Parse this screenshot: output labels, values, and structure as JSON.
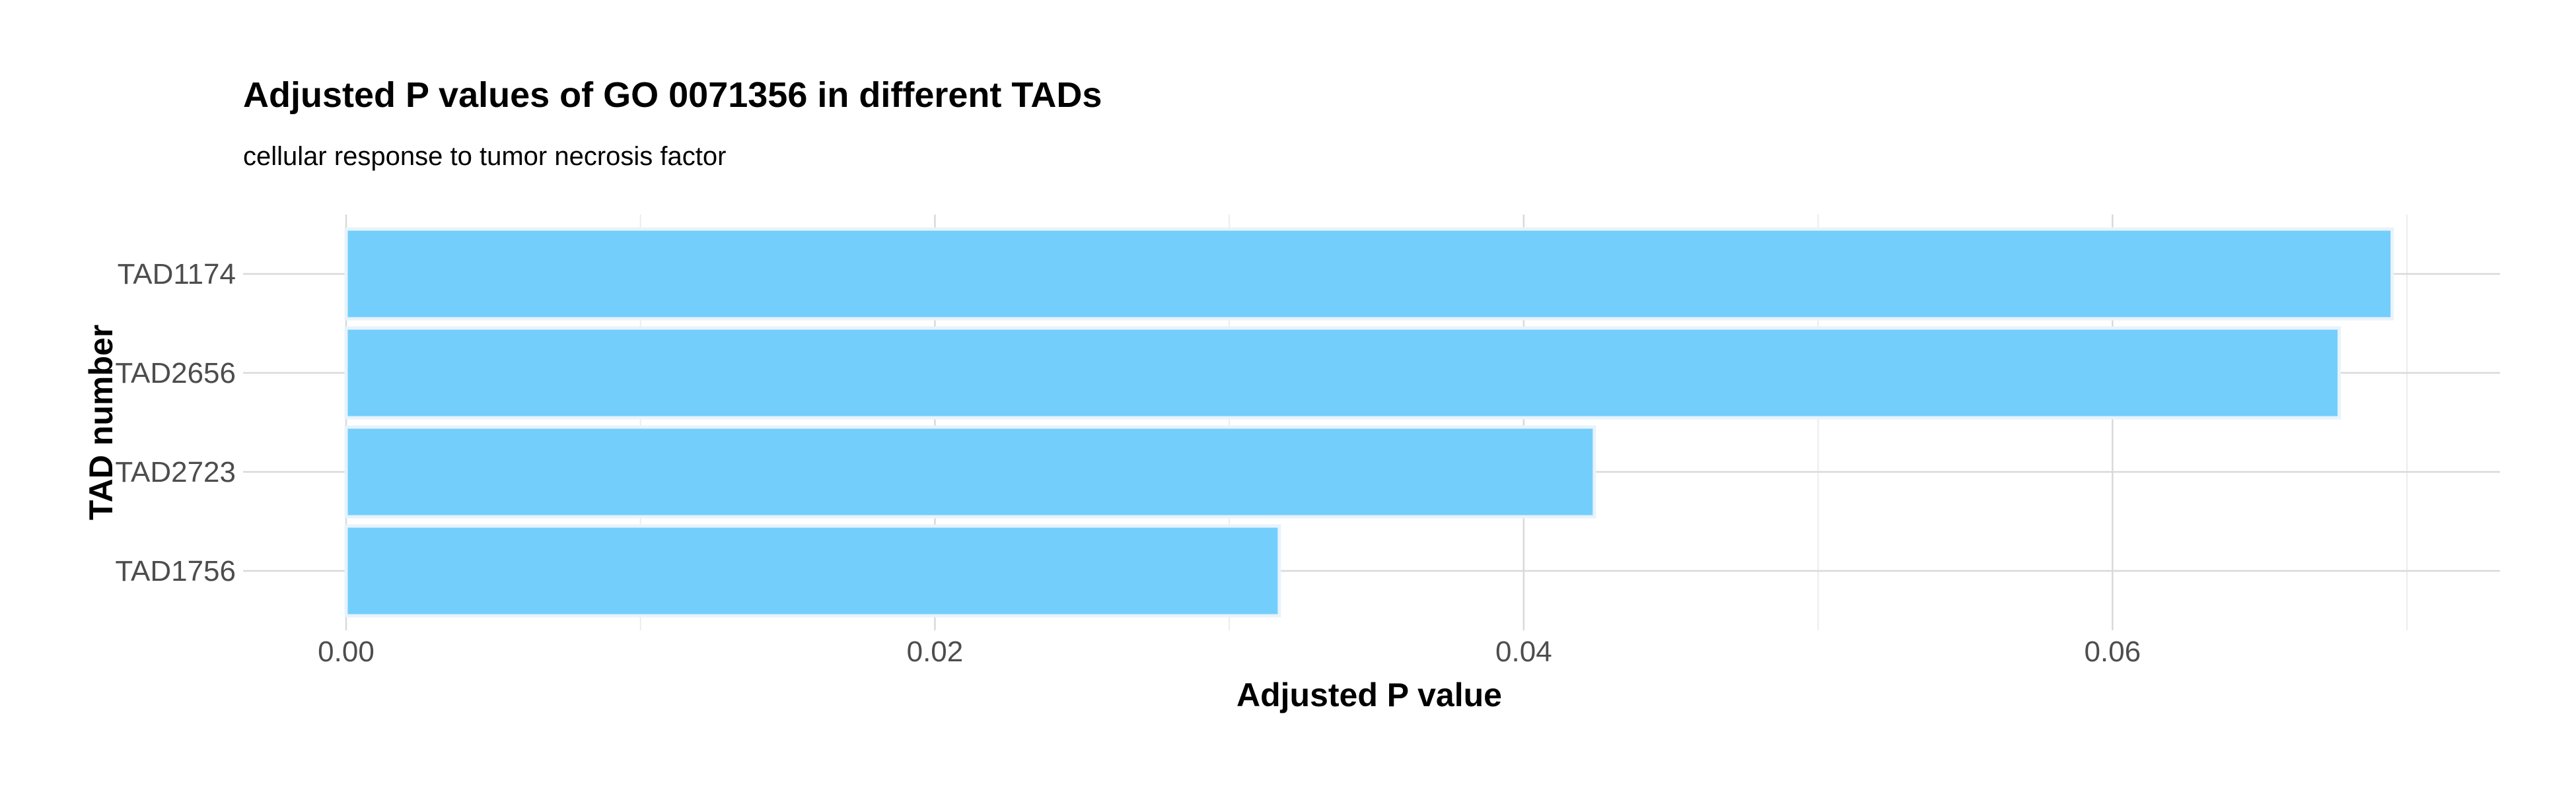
{
  "chart_data": {
    "type": "bar",
    "orientation": "horizontal",
    "title": "Adjusted P values of GO 0071356 in different TADs",
    "subtitle": "cellular response to tumor necrosis factor",
    "xlabel": "Adjusted P value",
    "ylabel": "TAD number",
    "categories": [
      "TAD1174",
      "TAD2656",
      "TAD2723",
      "TAD1756"
    ],
    "values": [
      0.0695,
      0.0677,
      0.0424,
      0.0317
    ],
    "xlim": [
      0,
      0.073
    ],
    "x_ticks": [
      0.0,
      0.02,
      0.04,
      0.06
    ],
    "x_tick_labels": [
      "0.00",
      "0.02",
      "0.04",
      "0.06"
    ],
    "grid": true,
    "legend": "none",
    "colors": {
      "bar_fill": "#74cefb",
      "bar_stroke": "#e8f3fb",
      "grid_major": "#d9d9d9",
      "grid_minor": "#ececec",
      "tick_text": "#4d4d4d",
      "title_text": "#000000"
    }
  }
}
